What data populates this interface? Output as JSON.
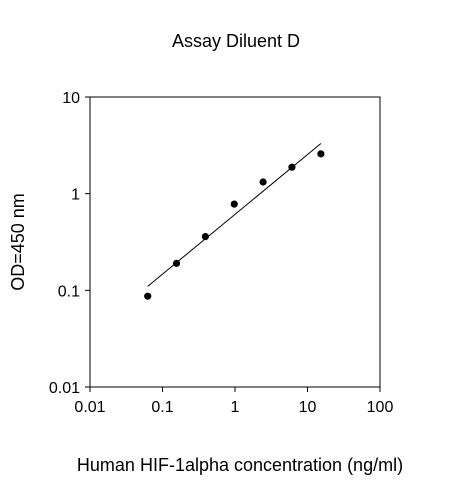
{
  "chart_data": {
    "type": "scatter",
    "title": "Assay Diluent D",
    "xlabel": "Human HIF-1alpha concentration (ng/ml)",
    "ylabel": "OD=450 nm",
    "x_scale": "log",
    "y_scale": "log",
    "xlim": [
      0.01,
      100
    ],
    "ylim": [
      0.01,
      10
    ],
    "x_ticks": [
      0.01,
      0.1,
      1,
      10,
      100
    ],
    "x_tick_labels": [
      "0.01",
      "0.1",
      "1",
      "10",
      "100"
    ],
    "y_ticks": [
      0.01,
      0.1,
      1,
      10
    ],
    "y_tick_labels": [
      "0.01",
      "0.1",
      "1",
      "10"
    ],
    "grid": false,
    "legend": "none",
    "series": [
      {
        "x": [
          0.0625,
          0.156,
          0.39,
          0.977,
          2.44,
          6.1,
          15.3
        ],
        "y": [
          0.087,
          0.19,
          0.36,
          0.78,
          1.32,
          1.88,
          2.58
        ]
      }
    ],
    "fit_line": {
      "x": [
        0.0625,
        15.3
      ],
      "y": [
        0.11,
        3.3
      ]
    },
    "colors": {
      "points": "#000000",
      "line": "#000000",
      "axes": "#000000"
    }
  }
}
